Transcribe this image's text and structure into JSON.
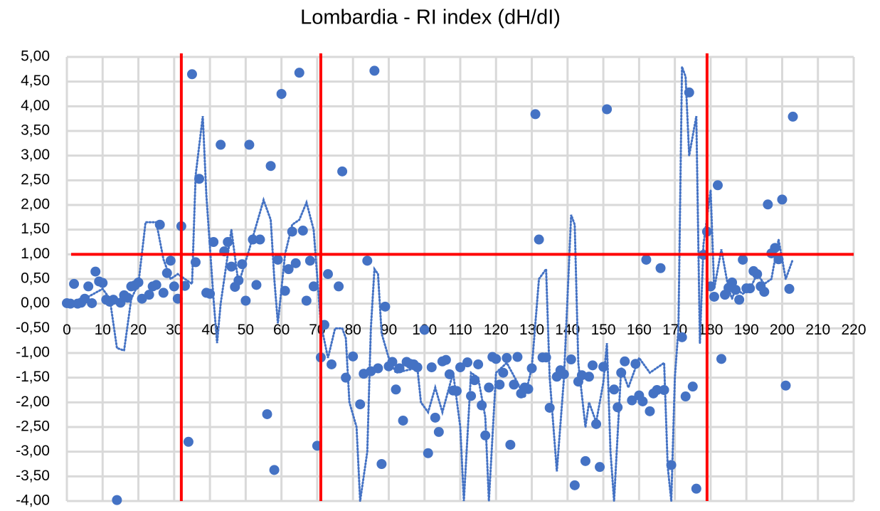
{
  "chart_data": {
    "type": "scatter",
    "title": "Lombardia - RI index (dH/dI)",
    "xlim": [
      0,
      220
    ],
    "xticks": [
      0,
      10,
      20,
      30,
      40,
      50,
      60,
      70,
      80,
      90,
      100,
      110,
      120,
      130,
      140,
      150,
      160,
      170,
      180,
      190,
      200,
      210,
      220
    ],
    "ylim": [
      -4,
      5
    ],
    "yticks": [
      {
        "value": -4,
        "label": "-4,00"
      },
      {
        "value": -3.5,
        "label": "-3,50"
      },
      {
        "value": -3,
        "label": "-3,00"
      },
      {
        "value": -2.5,
        "label": "-2,50"
      },
      {
        "value": -2,
        "label": "-2,00"
      },
      {
        "value": -1.5,
        "label": "-1,50"
      },
      {
        "value": -1,
        "label": "-1,00"
      },
      {
        "value": -0.5,
        "label": "-0,50"
      },
      {
        "value": 0,
        "label": "0,00"
      },
      {
        "value": 0.5,
        "label": "0,50"
      },
      {
        "value": 1,
        "label": "1,00"
      },
      {
        "value": 1.5,
        "label": "1,50"
      },
      {
        "value": 2,
        "label": "2,00"
      },
      {
        "value": 2.5,
        "label": "2,50"
      },
      {
        "value": 3,
        "label": "3,00"
      },
      {
        "value": 3.5,
        "label": "3,50"
      },
      {
        "value": 4,
        "label": "4,00"
      },
      {
        "value": 4.5,
        "label": "4,50"
      },
      {
        "value": 5,
        "label": "5,00"
      }
    ],
    "grid": true,
    "color": "#4472c4",
    "points": {
      "x": [
        0,
        1,
        2,
        3,
        4,
        5,
        6,
        7,
        8,
        9,
        10,
        11,
        12,
        13,
        14,
        15,
        16,
        17,
        18,
        19,
        20,
        21,
        23,
        24,
        25,
        26,
        27,
        28,
        29,
        30,
        31,
        32,
        33,
        34,
        35,
        36,
        37,
        39,
        40,
        41,
        43,
        44,
        45,
        46,
        47,
        48,
        49,
        50,
        51,
        52,
        53,
        54,
        56,
        57,
        58,
        59,
        60,
        61,
        62,
        63,
        64,
        65,
        66,
        67,
        68,
        69,
        70,
        71,
        72,
        73,
        74,
        76,
        77,
        78,
        80,
        82,
        83,
        84,
        85,
        86,
        87,
        88,
        89,
        90,
        91,
        92,
        93,
        94,
        95,
        96,
        97,
        98,
        100,
        101,
        102,
        103,
        104,
        105,
        106,
        107,
        108,
        109,
        110,
        112,
        113,
        114,
        115,
        116,
        117,
        118,
        119,
        120,
        121,
        122,
        123,
        124,
        125,
        126,
        127,
        128,
        129,
        130,
        131,
        132,
        133,
        134,
        135,
        137,
        138,
        139,
        141,
        142,
        143,
        144,
        145,
        146,
        147,
        148,
        149,
        150,
        151,
        153,
        154,
        155,
        156,
        158,
        159,
        160,
        161,
        162,
        163,
        164,
        165,
        166,
        167,
        169,
        172,
        173,
        174,
        175,
        176,
        178,
        179,
        180,
        181,
        182,
        183,
        184,
        185,
        186,
        187,
        188,
        189,
        190,
        191,
        192,
        193,
        194,
        195,
        196,
        197,
        198,
        199,
        200,
        201,
        202,
        203
      ],
      "values": [
        0.01,
        0,
        0.4,
        0,
        0.02,
        0.1,
        0.35,
        0.01,
        0.65,
        0.45,
        0.42,
        0.08,
        0.04,
        0.08,
        -3.98,
        0.02,
        0.17,
        0.12,
        0.35,
        0.37,
        0.43,
        0.1,
        0.18,
        0.35,
        0.38,
        1.6,
        0.22,
        0.62,
        0.87,
        0.35,
        0.1,
        1.57,
        0.36,
        -2.8,
        4.65,
        0.84,
        2.53,
        0.22,
        0.2,
        1.25,
        3.22,
        1.06,
        1.25,
        0.75,
        0.34,
        0.47,
        0.8,
        0.06,
        3.22,
        1.3,
        0.38,
        1.3,
        -2.24,
        2.79,
        -3.37,
        0.89,
        4.25,
        0.26,
        0.7,
        1.46,
        0.82,
        4.68,
        1.48,
        0.06,
        0.87,
        0.35,
        -2.88,
        -1.09,
        -0.43,
        0.6,
        -1.23,
        0.35,
        2.68,
        -1.5,
        -1.07,
        -2.04,
        -1.42,
        0.87,
        -1.37,
        4.72,
        -1.31,
        -3.25,
        -0.06,
        -1.27,
        -1.18,
        -1.74,
        -1.31,
        -2.37,
        -1.18,
        -1.22,
        -1.23,
        -1.29,
        -0.53,
        -3.03,
        -1.29,
        -2.31,
        -2.6,
        -1.17,
        -1.14,
        -1.43,
        -1.76,
        -1.77,
        -1.29,
        -1.19,
        -1.87,
        -1.55,
        -1.23,
        -2.06,
        -2.67,
        -1.7,
        -1.08,
        -1.12,
        -1.64,
        -1.4,
        -1.1,
        -2.86,
        -1.64,
        -1.08,
        -1.82,
        -1.7,
        -1.73,
        -1.31,
        3.84,
        1.3,
        -1.09,
        -1.09,
        -2.11,
        -1.48,
        -1.35,
        -1.43,
        -1.13,
        -3.68,
        -1.58,
        -1.45,
        -3.19,
        -1.48,
        -1.25,
        -2.44,
        -3.31,
        -1.28,
        3.94,
        -1.74,
        -2.1,
        -1.4,
        -1.17,
        -1.96,
        -1.22,
        -1.86,
        -1.98,
        0.89,
        -2.18,
        -1.82,
        -1.75,
        0.72,
        -1.75,
        -3.27,
        -0.68,
        -1.88,
        4.28,
        -1.68,
        -3.75,
        0.99,
        1.46,
        0.35,
        0.14,
        2.4,
        -1.12,
        0.18,
        0.32,
        0.43,
        0.28,
        0.08,
        0.89,
        0.31,
        0.31,
        0.66,
        0.6,
        0.35,
        0.24,
        2.01,
        1.02,
        1.13,
        0.9,
        2.11,
        -1.66,
        0.3,
        3.79
      ]
    },
    "trend": {
      "x": [
        0,
        5,
        10,
        12,
        14,
        16,
        18,
        20,
        22,
        25,
        27,
        29,
        31,
        33,
        35,
        36,
        38,
        39,
        41,
        42,
        43,
        46,
        48,
        51,
        55,
        57,
        58,
        59,
        61,
        63,
        65,
        67,
        69,
        71,
        73,
        75,
        77,
        78,
        79,
        81,
        82,
        84,
        85,
        86,
        87,
        88,
        90,
        92,
        98,
        99,
        101,
        103,
        105,
        108,
        110,
        111,
        113,
        115,
        117,
        118,
        120,
        123,
        126,
        128,
        130,
        132,
        134,
        135,
        137,
        139,
        141,
        142,
        143,
        145,
        146,
        148,
        150,
        151,
        152,
        153,
        155,
        157,
        160,
        163,
        167,
        168,
        169,
        170,
        171,
        172,
        173,
        174,
        176,
        177,
        178,
        180,
        181,
        183,
        185,
        186,
        187,
        189,
        191,
        193,
        195,
        197,
        199,
        201,
        203
      ],
      "values": [
        0,
        0.1,
        0.3,
        0.1,
        -0.9,
        -0.95,
        0.1,
        0.4,
        1.65,
        1.65,
        0.9,
        0.5,
        0.6,
        0.5,
        0.4,
        2.6,
        3.8,
        2.2,
        0.1,
        -0.8,
        0,
        1.5,
        0.4,
        1.1,
        2.1,
        1.7,
        0.5,
        -0.4,
        1,
        1.6,
        1.7,
        2.05,
        1.5,
        -0.4,
        -1.1,
        -0.5,
        -0.5,
        -0.7,
        -2,
        -2.5,
        -4,
        -3,
        -0.5,
        0.7,
        0.6,
        -0.6,
        -1.1,
        -1.4,
        -1.3,
        -2,
        -2.2,
        -1.7,
        -2.2,
        -1.4,
        -2.5,
        -4,
        -1.4,
        -1.5,
        -2.3,
        -4,
        -1.4,
        -1.2,
        -1.6,
        -1.9,
        -1.3,
        0.5,
        0.7,
        -1.5,
        -3.4,
        -1.5,
        1.8,
        1.6,
        -1.2,
        -2.5,
        -2,
        -2.4,
        -1.6,
        -0.8,
        -3,
        -4,
        -1.3,
        -1.7,
        -1.1,
        -1.4,
        -1.2,
        -3.3,
        -4,
        -1.5,
        -0.5,
        4.8,
        4.6,
        3,
        3.8,
        -0.8,
        1.2,
        2.3,
        0.3,
        1.1,
        0.3,
        0.1,
        0.3,
        0.2,
        0.3,
        0.6,
        0.4,
        0.5,
        1.3,
        0.5,
        0.9
      ]
    },
    "reference_lines": {
      "color": "#ff0000",
      "x": [
        32,
        71,
        179
      ],
      "y": [
        1
      ]
    }
  }
}
